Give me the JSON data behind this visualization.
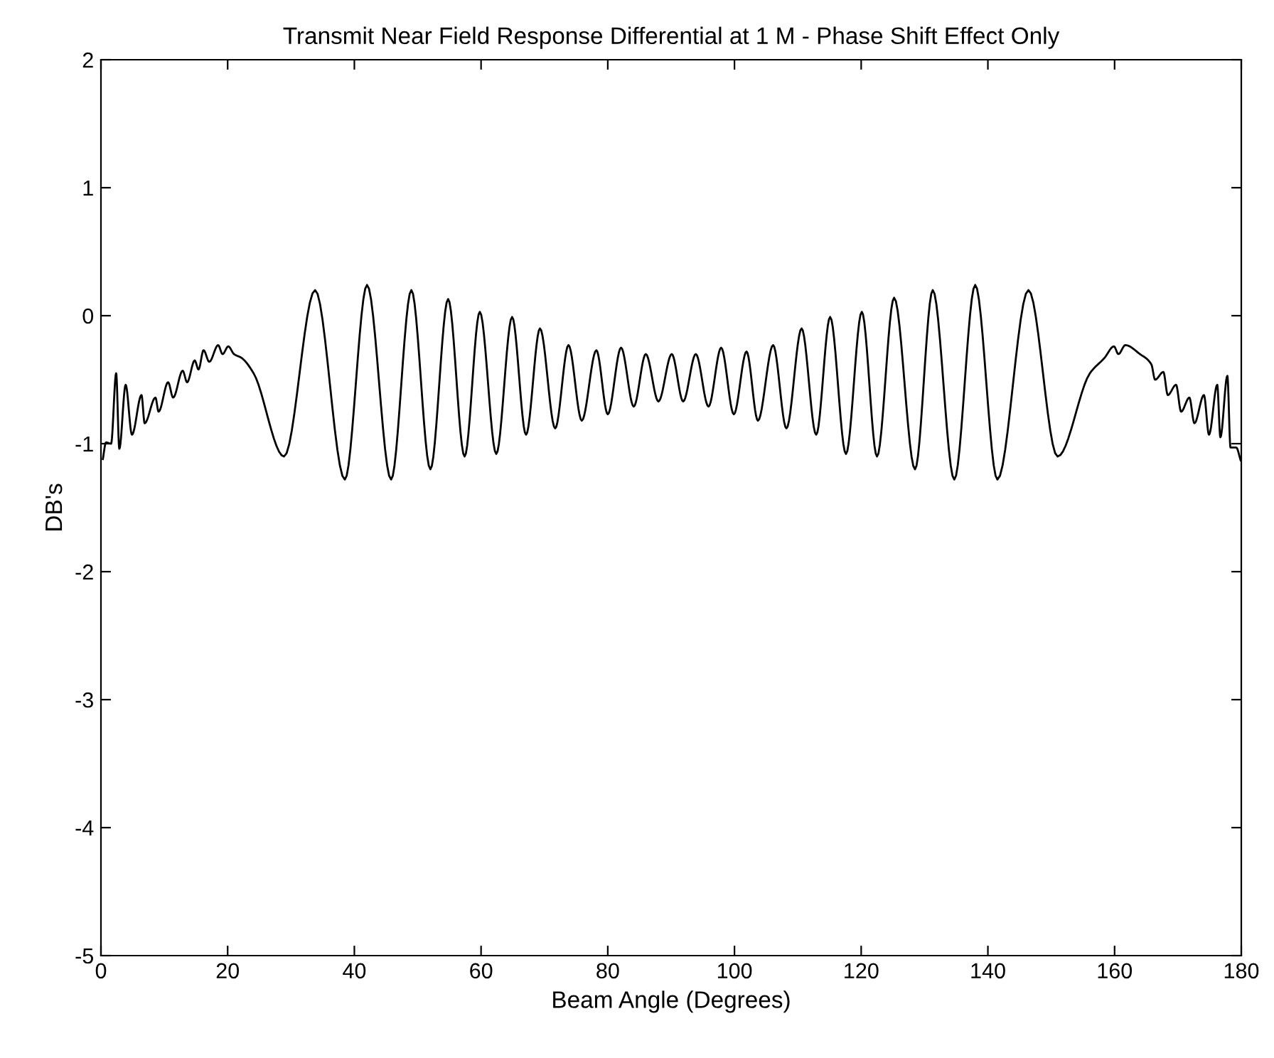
{
  "chart_data": {
    "type": "line",
    "title": "Transmit Near Field Response Differential at 1 M - Phase Shift Effect Only",
    "xlabel": "Beam Angle (Degrees)",
    "ylabel": "DB's",
    "xlim": [
      0,
      180
    ],
    "ylim": [
      -5,
      2
    ],
    "xticks": [
      0,
      20,
      40,
      60,
      80,
      100,
      120,
      140,
      160,
      180
    ],
    "yticks": [
      -5,
      -4,
      -3,
      -2,
      -1,
      0,
      1,
      2
    ],
    "grid": false,
    "legend": false,
    "marker": "none",
    "line_style": "solid",
    "series": [
      {
        "color": "#000000",
        "x": [
          0.3,
          0.8,
          1.6,
          2.4,
          2.9,
          3.9,
          4.9,
          6.4,
          6.9,
          8.6,
          9.1,
          10.6,
          11.4,
          12.9,
          13.6,
          14.8,
          15.4,
          16.2,
          17.1,
          18.5,
          19.2,
          20.1,
          21.0,
          22.2,
          24.1,
          28.9,
          33.8,
          38.5,
          42.0,
          45.8,
          49.0,
          52.0,
          54.8,
          57.4,
          59.8,
          62.4,
          64.9,
          67.1,
          69.3,
          71.7,
          73.8,
          75.9,
          78.2,
          80.0,
          82.1,
          84.1,
          86.0,
          88.0,
          90.1,
          91.9,
          93.9,
          95.9,
          97.9,
          99.9,
          101.9,
          103.7,
          106.1,
          108.2,
          110.6,
          112.9,
          115.1,
          117.6,
          120.1,
          122.5,
          125.2,
          128.5,
          131.3,
          134.7,
          138.0,
          141.5,
          146.4,
          151.0,
          156.1,
          158.4,
          159.9,
          160.6,
          161.7,
          164.0,
          165.8,
          166.4,
          167.7,
          168.4,
          169.7,
          170.5,
          171.8,
          172.6,
          174.1,
          174.9,
          176.2,
          176.7,
          177.8,
          178.3,
          179.2,
          179.9
        ],
        "values": [
          -1.12,
          -0.99,
          -1.0,
          -0.45,
          -1.04,
          -0.54,
          -0.93,
          -0.62,
          -0.84,
          -0.64,
          -0.75,
          -0.52,
          -0.64,
          -0.43,
          -0.52,
          -0.35,
          -0.42,
          -0.27,
          -0.36,
          -0.23,
          -0.3,
          -0.24,
          -0.3,
          -0.33,
          -0.45,
          -1.1,
          0.2,
          -1.28,
          0.24,
          -1.28,
          0.2,
          -1.2,
          0.13,
          -1.1,
          0.03,
          -1.08,
          -0.01,
          -0.93,
          -0.1,
          -0.88,
          -0.23,
          -0.82,
          -0.27,
          -0.77,
          -0.25,
          -0.71,
          -0.3,
          -0.67,
          -0.3,
          -0.67,
          -0.3,
          -0.71,
          -0.25,
          -0.77,
          -0.28,
          -0.82,
          -0.23,
          -0.88,
          -0.1,
          -0.93,
          -0.01,
          -1.08,
          0.03,
          -1.1,
          0.14,
          -1.2,
          0.2,
          -1.28,
          0.24,
          -1.28,
          0.2,
          -1.1,
          -0.45,
          -0.33,
          -0.24,
          -0.3,
          -0.23,
          -0.3,
          -0.38,
          -0.5,
          -0.44,
          -0.62,
          -0.54,
          -0.75,
          -0.64,
          -0.84,
          -0.62,
          -0.93,
          -0.54,
          -0.95,
          -0.47,
          -1.03,
          -1.03,
          -1.13
        ]
      }
    ]
  }
}
